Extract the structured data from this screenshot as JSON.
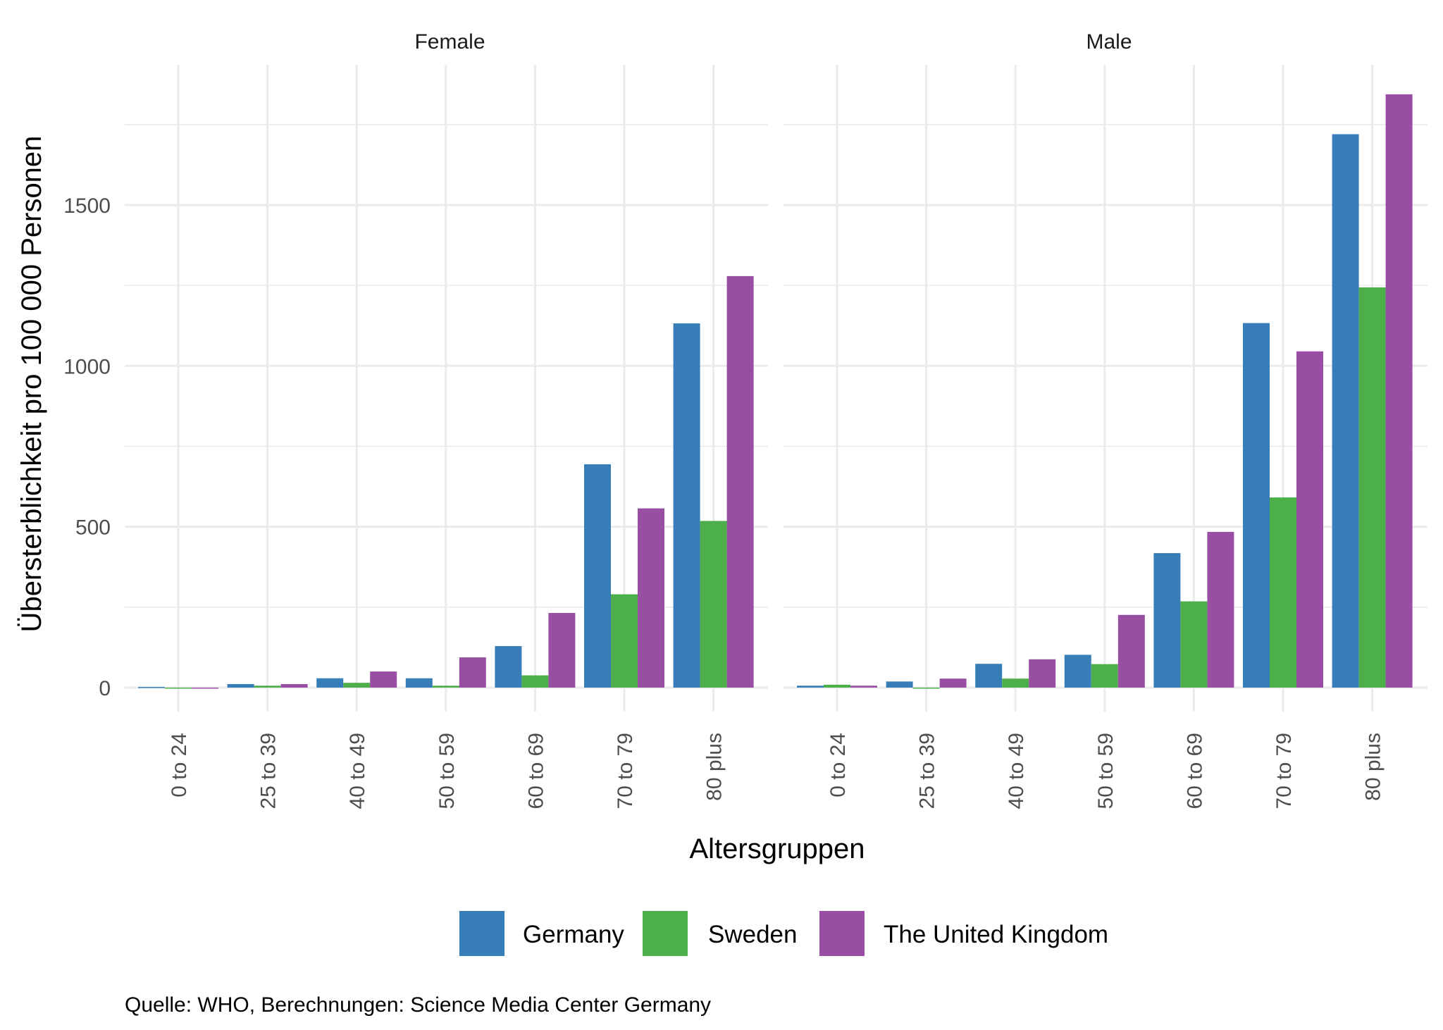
{
  "chart_data": {
    "type": "bar",
    "layout": "grouped bars, faceted by sex",
    "facets": [
      "Female",
      "Male"
    ],
    "categories": [
      "0 to 24",
      "25 to 39",
      "40 to 49",
      "50 to 59",
      "60 to 69",
      "70 to 79",
      "80 plus"
    ],
    "xlabel": "Altersgruppen",
    "ylabel": "Übersterblichkeit pro 100 000 Personen",
    "ylim": [
      -60,
      1900
    ],
    "yticks": [
      0,
      500,
      1000,
      1500
    ],
    "ytick_labels": [
      "0",
      "500",
      "1000",
      "1500"
    ],
    "grid": true,
    "legend_position": "bottom",
    "caption": "Quelle: WHO, Berechnungen: Science Media Center Germany",
    "series": [
      {
        "name": "Germany",
        "color": "#377eb8",
        "values": {
          "Female": [
            2,
            11,
            29,
            29,
            129,
            694,
            1132
          ],
          "Male": [
            6,
            19,
            74,
            102,
            418,
            1133,
            1720
          ]
        }
      },
      {
        "name": "Sweden",
        "color": "#4daf4a",
        "values": {
          "Female": [
            0,
            6,
            15,
            6,
            38,
            290,
            518
          ],
          "Male": [
            9,
            -2,
            28,
            73,
            268,
            591,
            1244
          ]
        }
      },
      {
        "name": "The United Kingdom",
        "color": "#984ea3",
        "values": {
          "Female": [
            0,
            11,
            50,
            94,
            232,
            557,
            1279
          ],
          "Male": [
            6,
            28,
            88,
            226,
            484,
            1045,
            1844
          ]
        }
      }
    ]
  }
}
